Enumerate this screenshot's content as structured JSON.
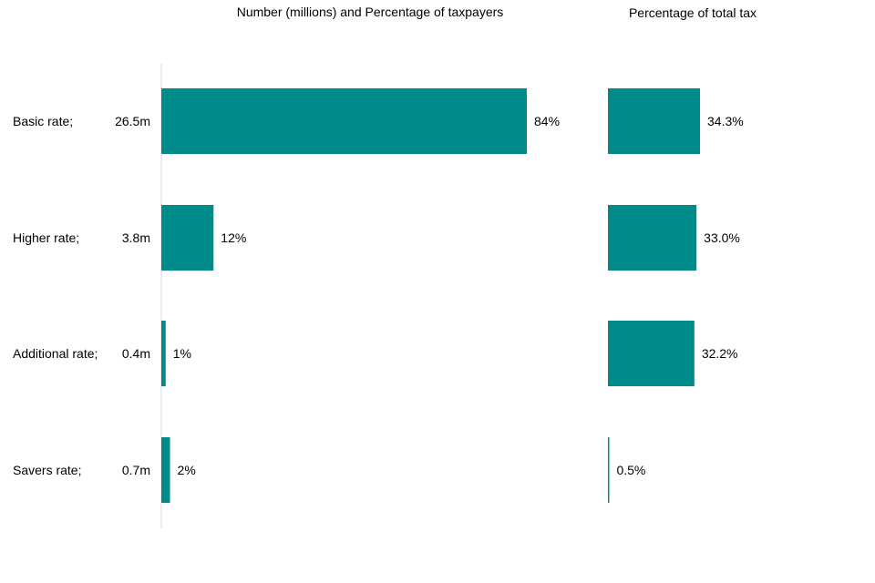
{
  "chart_data": {
    "type": "bar",
    "orientation": "horizontal",
    "categories": [
      "Basic rate;",
      "Higher rate;",
      "Additional rate;",
      "Savers rate;"
    ],
    "counts": [
      "26.5m",
      "3.8m",
      "0.4m",
      "0.7m"
    ],
    "panels": [
      {
        "title": "Number (millions) and Percentage of taxpayers",
        "values": [
          84,
          12,
          1,
          2
        ],
        "labels": [
          "84%",
          "12%",
          "1%",
          "2%"
        ],
        "xlim": [
          0,
          84
        ]
      },
      {
        "title": "Percentage of total tax",
        "values": [
          34.3,
          33.0,
          32.2,
          0.5
        ],
        "labels": [
          "34.3%",
          "33.0%",
          "32.2%",
          "0.5%"
        ],
        "xlim": [
          0,
          34.3
        ]
      }
    ],
    "bar_color": "#008b8b",
    "axis_color": "#d9d9d9",
    "grid": false,
    "legend": "none"
  }
}
